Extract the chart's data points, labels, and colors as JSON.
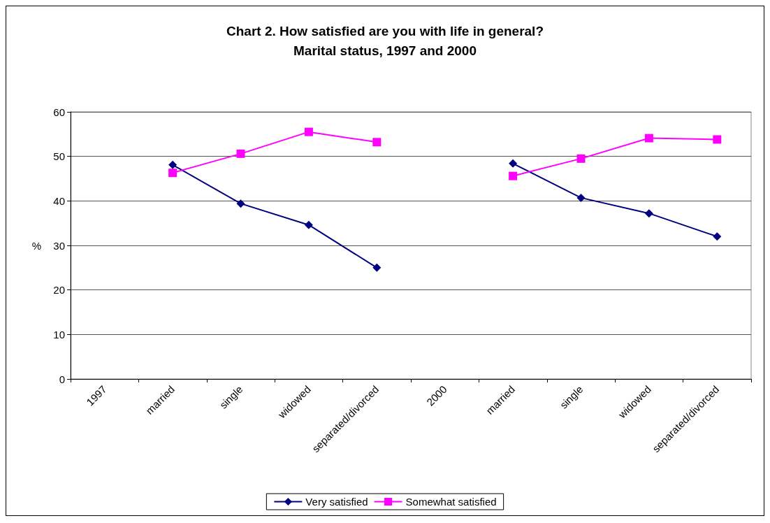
{
  "chart_data": {
    "type": "line",
    "title": "Chart 2. How satisfied are you with life in general?\nMarital status, 1997 and 2000",
    "ylabel": "%",
    "categories": [
      "1997",
      "married",
      "single",
      "widowed",
      "separated/divorced",
      "2000",
      "married",
      "single",
      "widowed",
      "separated/divorced"
    ],
    "series": [
      {
        "name": "Very satisfied",
        "color": "#000080",
        "marker": "diamond",
        "values": [
          null,
          48.1,
          39.4,
          34.6,
          25.0,
          null,
          48.4,
          40.7,
          37.2,
          32.0
        ]
      },
      {
        "name": "Somewhat satisfied",
        "color": "#ff00ff",
        "marker": "square",
        "values": [
          null,
          46.3,
          50.6,
          55.5,
          53.2,
          null,
          45.6,
          49.5,
          54.1,
          53.8
        ]
      }
    ],
    "ylim": [
      0,
      60
    ],
    "yticks": [
      0,
      10,
      20,
      30,
      40,
      50,
      60
    ],
    "grid": "y",
    "legend": "bottom"
  }
}
